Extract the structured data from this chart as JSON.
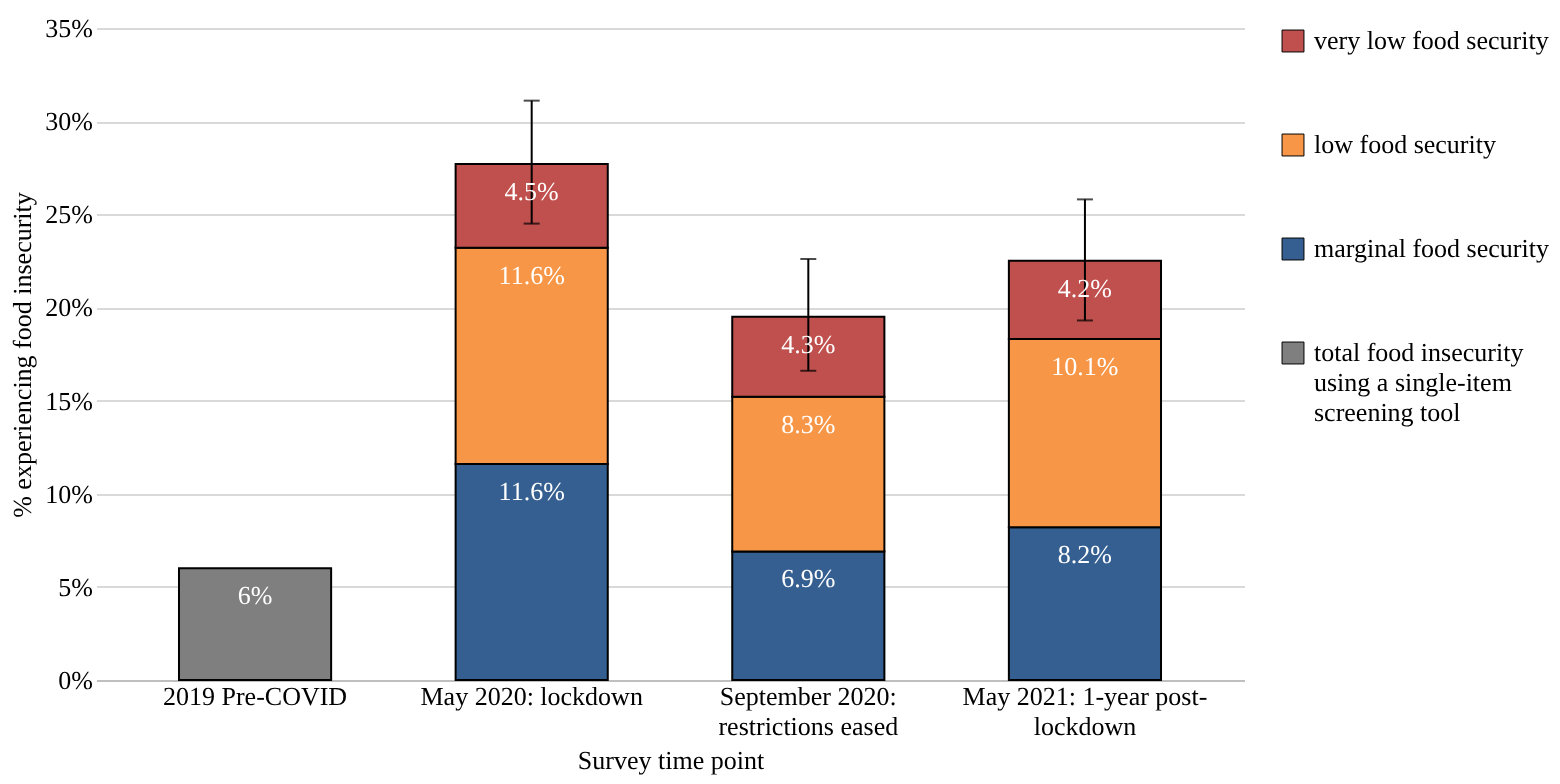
{
  "chart_data": {
    "type": "bar",
    "stacked": true,
    "xlabel": "Survey time point",
    "ylabel": "% experiencing food insecurity",
    "categories": [
      "2019 Pre-COVID",
      "May 2020: lockdown",
      "September 2020: restrictions eased",
      "May 2021: 1-year post-lockdown"
    ],
    "series": [
      {
        "name": "marginal food security",
        "color": "#365f91",
        "values": [
          null,
          11.6,
          6.9,
          8.2
        ],
        "value_labels": [
          null,
          "11.6%",
          "6.9%",
          "8.2%"
        ]
      },
      {
        "name": "low food security",
        "color": "#f79646",
        "values": [
          null,
          11.6,
          8.3,
          10.1
        ],
        "value_labels": [
          null,
          "11.6%",
          "8.3%",
          "10.1%"
        ]
      },
      {
        "name": "very low food security",
        "color": "#c0504d",
        "values": [
          null,
          4.5,
          4.3,
          4.2
        ],
        "value_labels": [
          null,
          "4.5%",
          "4.3%",
          "4.2%"
        ],
        "errors": [
          null,
          [
            24.5,
            31.1
          ],
          [
            16.6,
            22.6
          ],
          [
            19.3,
            25.8
          ]
        ]
      },
      {
        "name": "total food insecurity using a single-item screening tool",
        "color": "#7f7f7f",
        "values": [
          6,
          null,
          null,
          null
        ],
        "value_labels": [
          "6%",
          null,
          null,
          null
        ]
      }
    ],
    "ylim": [
      0,
      35
    ],
    "yticks": [
      {
        "value": 0,
        "label": "0%"
      },
      {
        "value": 5,
        "label": "5%"
      },
      {
        "value": 10,
        "label": "10%"
      },
      {
        "value": 15,
        "label": "15%"
      },
      {
        "value": 20,
        "label": "20%"
      },
      {
        "value": 25,
        "label": "25%"
      },
      {
        "value": 30,
        "label": "30%"
      },
      {
        "value": 35,
        "label": "35%"
      }
    ],
    "grid": "y",
    "legend": "right"
  }
}
